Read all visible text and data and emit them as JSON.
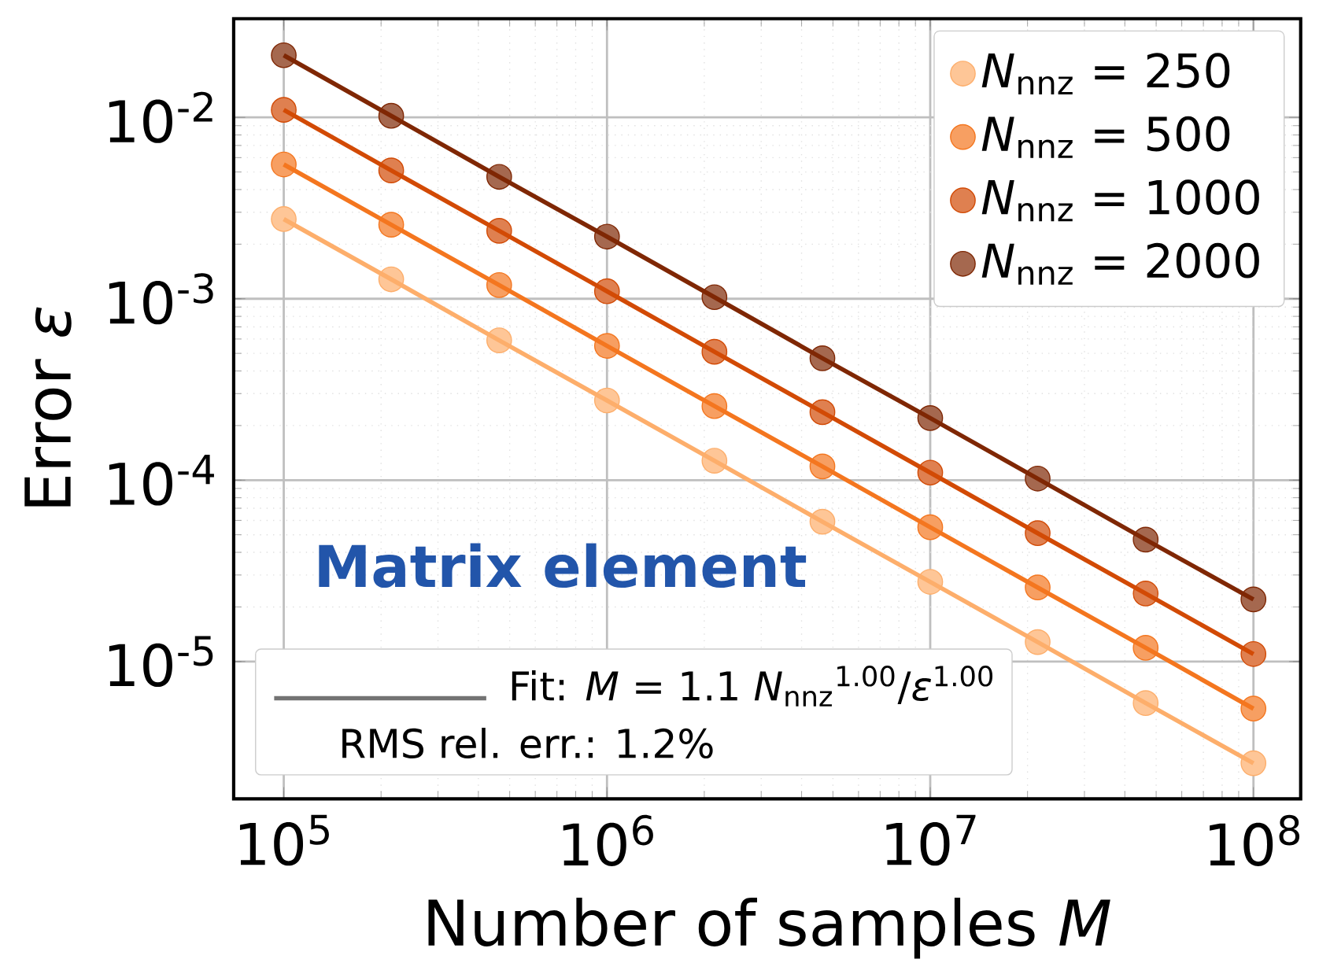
{
  "chart_data": {
    "type": "scatter",
    "xlabel": "Number of samples *M*",
    "ylabel": "Error *ε*",
    "x": [
      100000,
      215000,
      464000,
      1000000,
      2150000,
      4640000,
      10000000,
      21500000,
      46400000,
      100000000
    ],
    "series": [
      {
        "name": "*N*$_{nnz}$ = 250",
        "marker": "circle",
        "color": "#fdae6b",
        "values": [
          0.00275,
          0.00128,
          0.00059,
          0.000275,
          0.000128,
          5.9e-05,
          2.75e-05,
          1.28e-05,
          5.9e-06,
          2.75e-06
        ]
      },
      {
        "name": "*N*$_{nnz}$ = 500",
        "marker": "circle",
        "color": "#f4761f",
        "values": [
          0.0055,
          0.00256,
          0.00119,
          0.00055,
          0.000256,
          0.000119,
          5.5e-05,
          2.56e-05,
          1.19e-05,
          5.5e-06
        ]
      },
      {
        "name": "*N*$_{nnz}$ = 1000",
        "marker": "circle",
        "color": "#d24a05",
        "values": [
          0.011,
          0.0051,
          0.00237,
          0.0011,
          0.00051,
          0.000237,
          0.00011,
          5.1e-05,
          2.37e-05,
          1.1e-05
        ]
      },
      {
        "name": "*N*$_{nnz}$ = 2000",
        "marker": "circle",
        "color": "#7f2704",
        "values": [
          0.022,
          0.0102,
          0.0047,
          0.0022,
          0.00102,
          0.00047,
          0.00022,
          0.000102,
          4.7e-05,
          2.2e-05
        ]
      },
      {
        "type": "line",
        "marker": "none",
        "color": "#fdae6b",
        "values": [
          0.00275,
          0.00128,
          0.00059,
          0.000275,
          0.000128,
          5.9e-05,
          2.75e-05,
          1.28e-05,
          5.9e-06,
          2.75e-06
        ]
      },
      {
        "type": "line",
        "marker": "none",
        "color": "#f4761f",
        "values": [
          0.0055,
          0.00256,
          0.00119,
          0.00055,
          0.000256,
          0.000119,
          5.5e-05,
          2.56e-05,
          1.19e-05,
          5.5e-06
        ]
      },
      {
        "type": "line",
        "marker": "none",
        "color": "#d24a05",
        "values": [
          0.011,
          0.0051,
          0.00237,
          0.0011,
          0.00051,
          0.000237,
          0.00011,
          5.1e-05,
          2.37e-05,
          1.1e-05
        ]
      },
      {
        "type": "line",
        "marker": "none",
        "color": "#7f2704",
        "values": [
          0.022,
          0.0102,
          0.0047,
          0.0022,
          0.00102,
          0.00047,
          0.00022,
          0.000102,
          4.7e-05,
          2.2e-05
        ]
      }
    ],
    "annotations": [
      "**Matrix element**",
      "Fit: *M* = 1.1 *N*$_{nnz}$$^{1.00}$/*ε*$^{1.00}$",
      "RMS rel. err.: 1.2%"
    ],
    "log": "xy",
    "grid": true,
    "legend": "top right",
    "xlim": [
      70000,
      140000000
    ],
    "ylim": [
      1.75e-06,
      0.035
    ],
    "xticks": [
      {
        "value": 100000,
        "label": "10$^{5}$"
      },
      {
        "value": 1000000,
        "label": "10$^{6}$"
      },
      {
        "value": 10000000,
        "label": "10$^{7}$"
      },
      {
        "value": 100000000,
        "label": "10$^{8}$"
      }
    ],
    "yticks": [
      {
        "value": 1e-05,
        "label": "10$^{-5}$"
      },
      {
        "value": 0.0001,
        "label": "10$^{-4}$"
      },
      {
        "value": 0.001,
        "label": "10$^{-3}$"
      },
      {
        "value": 0.01,
        "label": "10$^{-2}$"
      }
    ]
  }
}
